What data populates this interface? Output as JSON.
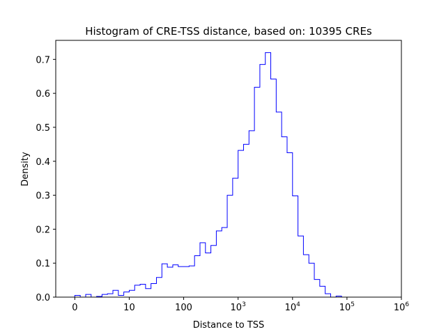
{
  "chart_data": {
    "type": "histogram",
    "title": "Histogram of CRE-TSS distance, based on: 10395 CREs",
    "xlabel": "Distance to TSS",
    "ylabel": "Density",
    "xscale": "symlog",
    "xlim": [
      -0.35,
      6
    ],
    "ylim": [
      0,
      0.756
    ],
    "x_ticks": [
      {
        "pos": 0,
        "label": "0",
        "sup": ""
      },
      {
        "pos": 1,
        "label": "10",
        "sup": ""
      },
      {
        "pos": 2,
        "label": "100",
        "sup": ""
      },
      {
        "pos": 3,
        "label": "10",
        "sup": "3"
      },
      {
        "pos": 4,
        "label": "10",
        "sup": "4"
      },
      {
        "pos": 5,
        "label": "10",
        "sup": "5"
      },
      {
        "pos": 6,
        "label": "10",
        "sup": "6"
      }
    ],
    "y_ticks": [
      0.0,
      0.1,
      0.2,
      0.3,
      0.4,
      0.5,
      0.6,
      0.7
    ],
    "y_tick_labels": [
      "0.0",
      "0.1",
      "0.2",
      "0.3",
      "0.4",
      "0.5",
      "0.6",
      "0.7"
    ],
    "line_color": "#0000ff",
    "bin_edges": [
      0,
      0.1,
      0.2,
      0.3,
      0.4,
      0.5,
      0.6,
      0.7,
      0.8,
      0.9,
      1.0,
      1.1,
      1.2,
      1.3,
      1.4,
      1.5,
      1.6,
      1.7,
      1.8,
      1.9,
      2.0,
      2.1,
      2.2,
      2.3,
      2.4,
      2.5,
      2.6,
      2.7,
      2.8,
      2.9,
      3.0,
      3.1,
      3.2,
      3.3,
      3.4,
      3.5,
      3.6,
      3.7,
      3.8,
      3.9,
      4.0,
      4.1,
      4.2,
      4.3,
      4.4,
      4.5,
      4.6,
      4.7,
      4.8,
      4.9,
      5.0,
      5.1,
      5.2,
      5.3,
      5.4,
      5.5,
      5.6
    ],
    "densities": [
      0.005,
      0.0,
      0.008,
      0.0,
      0.002,
      0.008,
      0.01,
      0.02,
      0.005,
      0.015,
      0.02,
      0.035,
      0.038,
      0.025,
      0.04,
      0.058,
      0.098,
      0.088,
      0.095,
      0.09,
      0.09,
      0.092,
      0.122,
      0.16,
      0.13,
      0.152,
      0.195,
      0.205,
      0.3,
      0.35,
      0.432,
      0.45,
      0.49,
      0.618,
      0.685,
      0.72,
      0.642,
      0.545,
      0.472,
      0.425,
      0.298,
      0.18,
      0.125,
      0.1,
      0.052,
      0.032,
      0.01,
      0.0,
      0.003,
      0.0,
      0.0,
      0.0,
      0.0,
      0.0,
      0.0,
      0.0
    ]
  }
}
